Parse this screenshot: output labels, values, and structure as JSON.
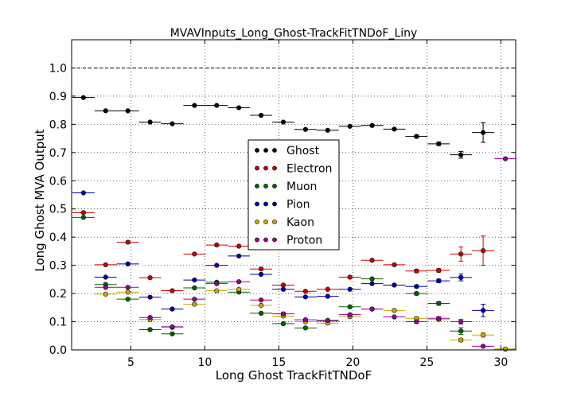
{
  "chart_data": {
    "type": "scatter",
    "title": "MVAVInputs_Long_Ghost-TrackFitTNDoF_Liny",
    "xlabel": "Long Ghost TrackFitTNDoF",
    "ylabel": "Long Ghost MVA Output",
    "xlim": [
      1.0,
      31.0
    ],
    "ylim": [
      0.0,
      1.1
    ],
    "xticks": [
      5,
      10,
      15,
      20,
      25,
      30
    ],
    "yticks": [
      0.0,
      0.1,
      0.2,
      0.3,
      0.4,
      0.5,
      0.6,
      0.7,
      0.8,
      0.9,
      1.0
    ],
    "reference_line": 1.0,
    "grid": true,
    "legend_position": "center",
    "x": [
      1.8,
      3.3,
      4.8,
      6.3,
      7.8,
      9.3,
      10.8,
      12.3,
      13.8,
      15.3,
      16.8,
      18.3,
      19.8,
      21.3,
      22.8,
      24.3,
      25.8,
      27.3,
      28.8,
      30.3
    ],
    "x_half_width": 0.75,
    "series": [
      {
        "name": "Ghost",
        "color": "#000000",
        "values": [
          0.895,
          0.848,
          0.848,
          0.808,
          0.802,
          0.867,
          0.867,
          0.859,
          0.832,
          0.808,
          0.782,
          0.779,
          0.793,
          0.796,
          0.783,
          0.757,
          0.731,
          0.692,
          0.771,
          null
        ],
        "errors": [
          0.004,
          0.004,
          0.004,
          0.004,
          0.004,
          0.004,
          0.004,
          0.004,
          0.004,
          0.004,
          0.004,
          0.004,
          0.004,
          0.004,
          0.004,
          0.005,
          0.006,
          0.012,
          0.035,
          null
        ]
      },
      {
        "name": "Electron",
        "color": "#cc0000",
        "values": [
          0.487,
          0.302,
          0.382,
          0.256,
          0.21,
          0.34,
          0.372,
          0.368,
          0.287,
          0.23,
          0.208,
          0.215,
          0.258,
          0.318,
          0.302,
          0.28,
          0.282,
          0.34,
          0.352,
          null
        ],
        "errors": [
          0.004,
          0.004,
          0.004,
          0.004,
          0.004,
          0.004,
          0.004,
          0.004,
          0.004,
          0.004,
          0.004,
          0.004,
          0.004,
          0.004,
          0.004,
          0.005,
          0.006,
          0.025,
          0.052,
          null
        ]
      },
      {
        "name": "Muon",
        "color": "#006600",
        "values": [
          0.47,
          0.232,
          0.18,
          0.072,
          0.057,
          0.22,
          0.24,
          0.205,
          0.13,
          0.093,
          0.078,
          0.102,
          0.153,
          0.252,
          0.23,
          0.2,
          0.165,
          0.067,
          null,
          0.003
        ],
        "errors": [
          0.004,
          0.004,
          0.004,
          0.004,
          0.004,
          0.004,
          0.004,
          0.004,
          0.004,
          0.004,
          0.004,
          0.004,
          0.004,
          0.004,
          0.004,
          0.005,
          0.006,
          0.012,
          null,
          0.003
        ]
      },
      {
        "name": "Pion",
        "color": "#0000aa",
        "values": [
          0.557,
          0.258,
          0.305,
          0.187,
          0.145,
          0.248,
          0.3,
          0.333,
          0.268,
          0.215,
          0.188,
          0.19,
          0.215,
          0.235,
          0.23,
          0.225,
          0.245,
          0.257,
          0.14,
          null
        ],
        "errors": [
          0.004,
          0.004,
          0.004,
          0.004,
          0.004,
          0.004,
          0.004,
          0.004,
          0.004,
          0.004,
          0.004,
          0.004,
          0.004,
          0.004,
          0.004,
          0.005,
          0.006,
          0.012,
          0.022,
          null
        ]
      },
      {
        "name": "Kaon",
        "color": "#ccaa00",
        "values": [
          null,
          0.198,
          0.205,
          0.108,
          0.08,
          0.162,
          0.21,
          0.215,
          0.158,
          0.12,
          0.1,
          0.095,
          0.118,
          0.145,
          0.14,
          0.112,
          0.108,
          0.035,
          0.053,
          0.003
        ],
        "errors": [
          null,
          0.004,
          0.004,
          0.004,
          0.004,
          0.004,
          0.004,
          0.004,
          0.004,
          0.004,
          0.004,
          0.004,
          0.004,
          0.004,
          0.004,
          0.005,
          0.006,
          0.006,
          0.008,
          0.003
        ]
      },
      {
        "name": "Proton",
        "color": "#990099",
        "values": [
          null,
          0.222,
          0.222,
          0.115,
          0.082,
          0.18,
          0.235,
          0.242,
          0.177,
          0.128,
          0.107,
          0.105,
          0.125,
          0.145,
          0.117,
          0.1,
          0.112,
          0.1,
          0.013,
          0.678
        ],
        "errors": [
          null,
          0.004,
          0.004,
          0.004,
          0.004,
          0.004,
          0.004,
          0.004,
          0.004,
          0.004,
          0.004,
          0.004,
          0.004,
          0.004,
          0.004,
          0.005,
          0.006,
          0.008,
          0.004,
          0.004
        ]
      }
    ]
  }
}
